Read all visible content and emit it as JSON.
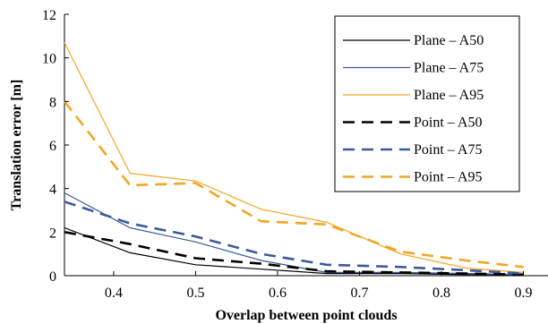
{
  "chart_data": {
    "type": "line",
    "xlabel": "Overlap between point clouds",
    "ylabel": "Translation error [m]",
    "xlim": [
      0.34,
      0.93
    ],
    "ylim": [
      0,
      12
    ],
    "xticks": [
      "0.4",
      "0.5",
      "0.6",
      "0.7",
      "0.8",
      "0.9"
    ],
    "xtick_values": [
      0.4,
      0.5,
      0.6,
      0.7,
      0.8,
      0.9
    ],
    "yticks": [
      "0",
      "2",
      "4",
      "6",
      "8",
      "10",
      "12"
    ],
    "ytick_values": [
      0,
      2,
      4,
      6,
      8,
      10,
      12
    ],
    "grid": false,
    "legend_position": "top-right",
    "series": [
      {
        "name": "Plane – A50",
        "color": "#000000",
        "style": "solid",
        "x": [
          0.34,
          0.42,
          0.5,
          0.58,
          0.66,
          0.75,
          0.83,
          0.9
        ],
        "y": [
          2.2,
          1.05,
          0.5,
          0.3,
          0.1,
          0.1,
          0.05,
          0.05
        ]
      },
      {
        "name": "Plane – A75",
        "color": "#3b5a9a",
        "style": "solid",
        "x": [
          0.34,
          0.42,
          0.5,
          0.58,
          0.66,
          0.75,
          0.83,
          0.9
        ],
        "y": [
          3.8,
          2.2,
          1.55,
          0.7,
          0.15,
          0.15,
          0.1,
          0.05
        ]
      },
      {
        "name": "Plane – A95",
        "color": "#f2a623",
        "style": "solid",
        "x": [
          0.34,
          0.42,
          0.5,
          0.58,
          0.66,
          0.75,
          0.83,
          0.9
        ],
        "y": [
          10.7,
          4.7,
          4.35,
          3.05,
          2.45,
          1.0,
          0.35,
          0.15
        ]
      },
      {
        "name": "Point – A50",
        "color": "#000000",
        "style": "dashed",
        "x": [
          0.34,
          0.42,
          0.5,
          0.58,
          0.66,
          0.75,
          0.83,
          0.9
        ],
        "y": [
          2.0,
          1.45,
          0.8,
          0.55,
          0.2,
          0.15,
          0.1,
          0.05
        ]
      },
      {
        "name": "Point – A75",
        "color": "#3b5a9a",
        "style": "dashed",
        "x": [
          0.34,
          0.42,
          0.5,
          0.58,
          0.66,
          0.75,
          0.83,
          0.9
        ],
        "y": [
          3.4,
          2.4,
          1.8,
          1.0,
          0.5,
          0.4,
          0.25,
          0.1
        ]
      },
      {
        "name": "Point – A95",
        "color": "#f2a623",
        "style": "dashed",
        "x": [
          0.34,
          0.42,
          0.5,
          0.58,
          0.66,
          0.75,
          0.83,
          0.9
        ],
        "y": [
          8.0,
          4.15,
          4.25,
          2.5,
          2.35,
          1.1,
          0.7,
          0.4
        ]
      }
    ]
  }
}
